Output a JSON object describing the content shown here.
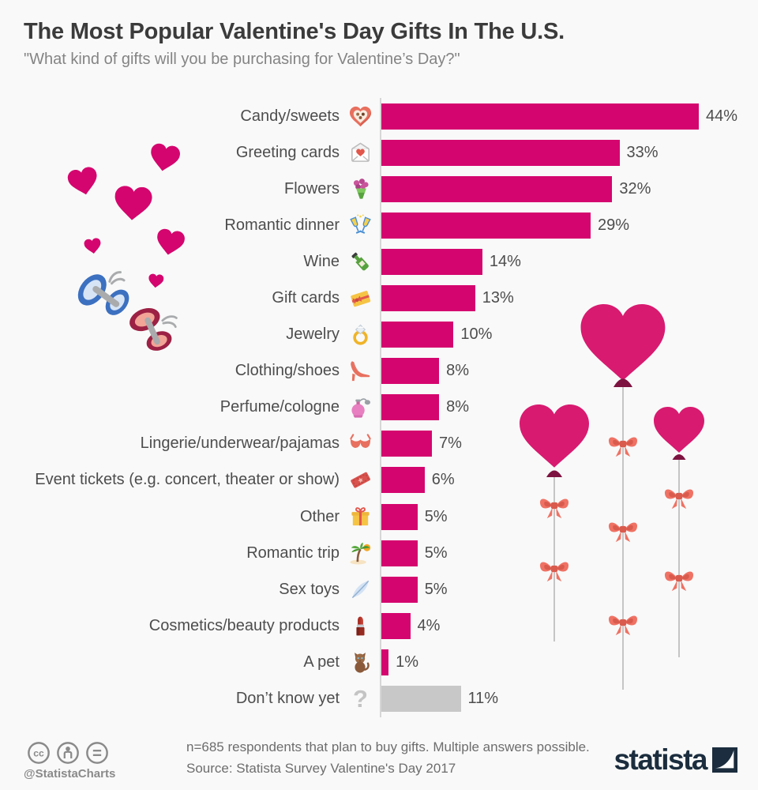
{
  "header": {
    "title": "The Most Popular Valentine's Day Gifts In The U.S.",
    "subtitle": "\"What kind of gifts will you be purchasing for Valentine’s Day?\""
  },
  "chart_data": {
    "type": "bar",
    "orientation": "horizontal",
    "unit": "%",
    "xlim": [
      0,
      44
    ],
    "grid": false,
    "categories": [
      "Candy/sweets",
      "Greeting cards",
      "Flowers",
      "Romantic dinner",
      "Wine",
      "Gift cards",
      "Jewelry",
      "Clothing/shoes",
      "Perfume/cologne",
      "Lingerie/underwear/pajamas",
      "Event tickets (e.g. concert, theater or show)",
      "Other",
      "Romantic trip",
      "Sex toys",
      "Cosmetics/beauty products",
      "A pet",
      "Don’t know yet"
    ],
    "values": [
      44,
      33,
      32,
      29,
      14,
      13,
      10,
      8,
      8,
      7,
      6,
      5,
      5,
      5,
      4,
      1,
      11
    ],
    "value_labels": [
      "44%",
      "33%",
      "32%",
      "29%",
      "14%",
      "13%",
      "10%",
      "8%",
      "8%",
      "7%",
      "6%",
      "5%",
      "5%",
      "5%",
      "4%",
      "1%",
      "11%"
    ],
    "icons": [
      "chocolate-box-icon",
      "love-letter-icon",
      "bouquet-icon",
      "clinking-glasses-icon",
      "champagne-bottle-icon",
      "gift-card-icon",
      "ring-icon",
      "high-heel-icon",
      "perfume-icon",
      "bra-icon",
      "ticket-icon",
      "gift-box-icon",
      "palm-tree-icon",
      "feather-icon",
      "lipstick-icon",
      "cat-icon",
      "question-mark-icon"
    ],
    "bar_color": "#d4056e",
    "neutral_bar_color": "#c8c8c8",
    "neutral_categories": [
      "Don’t know yet"
    ]
  },
  "footer": {
    "note": "n=685 respondents that plan to buy gifts. Multiple answers possible.",
    "source": "Source: Statista Survey Valentine's Day 2017",
    "handle": "@StatistaCharts",
    "brand": "statista"
  },
  "decorations": {
    "left": [
      "pink-hearts",
      "blue-butterfly",
      "pink-butterfly"
    ],
    "right": [
      "heart-balloons",
      "ribbon-bows"
    ],
    "heart_color": "#d4056e",
    "balloon_color": "#d81a70",
    "balloon_knot_color": "#7d1340",
    "bow_color": "#ef7264",
    "string_color": "#b8b8b8"
  }
}
